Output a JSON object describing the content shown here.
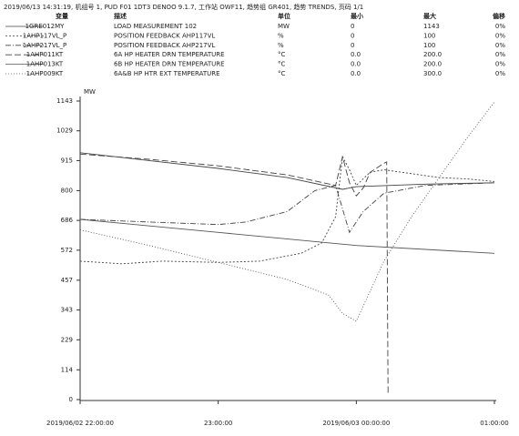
{
  "chart_data": {
    "type": "line",
    "title": "2019/06/13 14:31:19, 机组号 1, PUD F01 1DT3 DENOO 9.1.7, 工作站 OWF11, 趋势组 GR401, 趋势 TRENDS, 页码 1/1",
    "columns": [
      "变量",
      "描述",
      "单位",
      "最小",
      "最大",
      "偏移"
    ],
    "y_label": "MW",
    "ylim": [
      0,
      1143
    ],
    "yticks": [
      0,
      114,
      229,
      343,
      457,
      572,
      686,
      800,
      915,
      1029,
      1143
    ],
    "xlim": [
      0,
      3
    ],
    "xticks": [
      {
        "value": 0,
        "label": "2019/06/02 22:00:00"
      },
      {
        "value": 1,
        "label": "23:00:00"
      },
      {
        "value": 2,
        "label": "2019/06/03 00:00:00"
      },
      {
        "value": 3,
        "label": "01:00:00"
      }
    ],
    "series": [
      {
        "name": "1GRE012MY",
        "description": "LOAD MEASUREMENT 102",
        "unit": "MW",
        "min": "0",
        "max": "1143",
        "offset": "0%",
        "color": "#444",
        "dash": "none",
        "x": [
          0,
          0.5,
          1,
          1.5,
          1.9,
          2.0,
          2.5,
          3
        ],
        "values": [
          945,
          915,
          885,
          850,
          805,
          815,
          825,
          830
        ]
      },
      {
        "name": "1AHP117VL_P",
        "description": "POSITION FEEDBACK AHP117VL",
        "unit": "%",
        "min": "0",
        "max": "100",
        "offset": "0%",
        "color": "#444",
        "dash": "2 2",
        "x": [
          0,
          0.3,
          0.6,
          1,
          1.3,
          1.6,
          1.75,
          1.85,
          1.9,
          1.95,
          2.0,
          2.1,
          2.2,
          2.4,
          2.6,
          2.8,
          3
        ],
        "values": [
          530,
          520,
          530,
          525,
          530,
          560,
          600,
          700,
          930,
          880,
          820,
          870,
          880,
          865,
          850,
          845,
          835
        ]
      },
      {
        "name": "1AHP217VL_P",
        "description": "POSITION FEEDBACK AHP217VL",
        "unit": "%",
        "min": "0",
        "max": "100",
        "offset": "0%",
        "color": "#444",
        "dash": "6 2 1 2",
        "x": [
          0,
          0.5,
          1,
          1.2,
          1.5,
          1.7,
          1.85,
          1.95,
          2.05,
          2.2,
          2.5,
          3
        ],
        "values": [
          690,
          680,
          670,
          680,
          720,
          800,
          820,
          640,
          720,
          790,
          820,
          830
        ]
      },
      {
        "name": "1AHP011KT",
        "description": "6A HP HEATER DRN TEMPERATURE",
        "unit": "°C",
        "min": "0.0",
        "max": "200.0",
        "offset": "0%",
        "color": "#444",
        "dash": "7 3",
        "x": [
          0,
          0.5,
          1,
          1.5,
          1.85,
          1.9,
          1.95,
          2.0,
          2.05,
          2.1,
          2.2,
          2.22,
          2.23
        ],
        "values": [
          940,
          920,
          895,
          860,
          820,
          930,
          830,
          780,
          810,
          870,
          905,
          910,
          20
        ]
      },
      {
        "name": "1AHP013KT",
        "description": "6B HP HEATER DRN TEMPERATURE",
        "unit": "°C",
        "min": "0.0",
        "max": "200.0",
        "offset": "0%",
        "color": "#555",
        "dash": "none",
        "x": [
          0,
          1,
          2,
          3
        ],
        "values": [
          690,
          640,
          590,
          560
        ]
      },
      {
        "name": "1AHP009KT",
        "description": "6A&B HP HTR EXT TEMPERATURE",
        "unit": "°C",
        "min": "0.0",
        "max": "300.0",
        "offset": "0%",
        "color": "#555",
        "dash": "1 2",
        "x": [
          0,
          0.5,
          1,
          1.5,
          1.8,
          1.9,
          2.0,
          2.2,
          2.4,
          2.6,
          2.8,
          3
        ],
        "values": [
          650,
          590,
          525,
          460,
          400,
          330,
          300,
          530,
          700,
          850,
          1000,
          1140
        ]
      }
    ]
  }
}
